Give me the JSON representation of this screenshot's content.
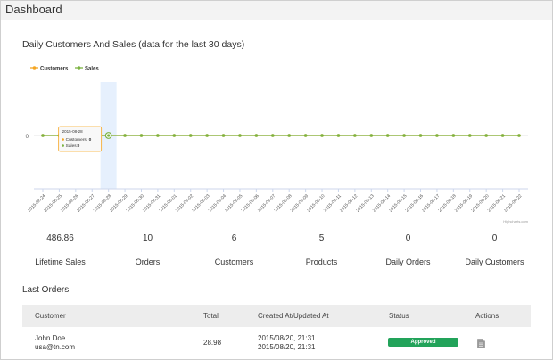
{
  "header": {
    "title": "Dashboard"
  },
  "chart_title": "Daily Customers And Sales (data for the last 30 days)",
  "chart_data": {
    "type": "line",
    "legend_position": "top-left",
    "categories": [
      "2015-08-24",
      "2015-08-25",
      "2015-08-26",
      "2015-08-27",
      "2015-08-28",
      "2015-08-29",
      "2015-08-30",
      "2015-08-31",
      "2015-09-01",
      "2015-09-02",
      "2015-09-03",
      "2015-09-04",
      "2015-09-05",
      "2015-09-06",
      "2015-09-07",
      "2015-09-08",
      "2015-09-09",
      "2015-09-10",
      "2015-09-11",
      "2015-09-12",
      "2015-09-13",
      "2015-09-14",
      "2015-09-15",
      "2015-09-16",
      "2015-09-17",
      "2015-09-18",
      "2015-09-19",
      "2015-09-20",
      "2015-09-21",
      "2015-09-22"
    ],
    "series": [
      {
        "name": "Customers",
        "color": "#f5a623",
        "values": [
          0,
          0,
          0,
          0,
          0,
          0,
          0,
          0,
          0,
          0,
          0,
          0,
          0,
          0,
          0,
          0,
          0,
          0,
          0,
          0,
          0,
          0,
          0,
          0,
          0,
          0,
          0,
          0,
          0,
          0
        ]
      },
      {
        "name": "Sales",
        "color": "#7cb342",
        "values": [
          0,
          0,
          0,
          0,
          0,
          0,
          0,
          0,
          0,
          0,
          0,
          0,
          0,
          0,
          0,
          0,
          0,
          0,
          0,
          0,
          0,
          0,
          0,
          0,
          0,
          0,
          0,
          0,
          0,
          0
        ]
      }
    ],
    "y_ticks": [
      "0"
    ],
    "highlighted_category": "2015-08-28",
    "tooltip": {
      "date": "2015-08-28",
      "customers_label": "Customers:",
      "customers_value": "0",
      "sales_label": "Sales:",
      "sales_value": "0"
    },
    "credit": "Highcharts.com"
  },
  "stats": [
    {
      "value": "486.86",
      "label": "Lifetime Sales",
      "color": "green"
    },
    {
      "value": "10",
      "label": "Orders",
      "color": "orange"
    },
    {
      "value": "6",
      "label": "Customers",
      "color": "orange"
    },
    {
      "value": "5",
      "label": "Products",
      "color": "gray"
    },
    {
      "value": "0",
      "label": "Daily Orders",
      "color": "gray"
    },
    {
      "value": "0",
      "label": "Daily Customers",
      "color": "gray"
    }
  ],
  "orders": {
    "title": "Last Orders",
    "columns": [
      "Customer",
      "Total",
      "Created At/Updated At",
      "Status",
      "Actions"
    ],
    "rows": [
      {
        "name": "John Doe",
        "email": "usa@tn.com",
        "total": "28.98",
        "created": "2015/08/20, 21:31",
        "updated": "2015/08/20, 21:31",
        "status": "Approved"
      }
    ]
  }
}
